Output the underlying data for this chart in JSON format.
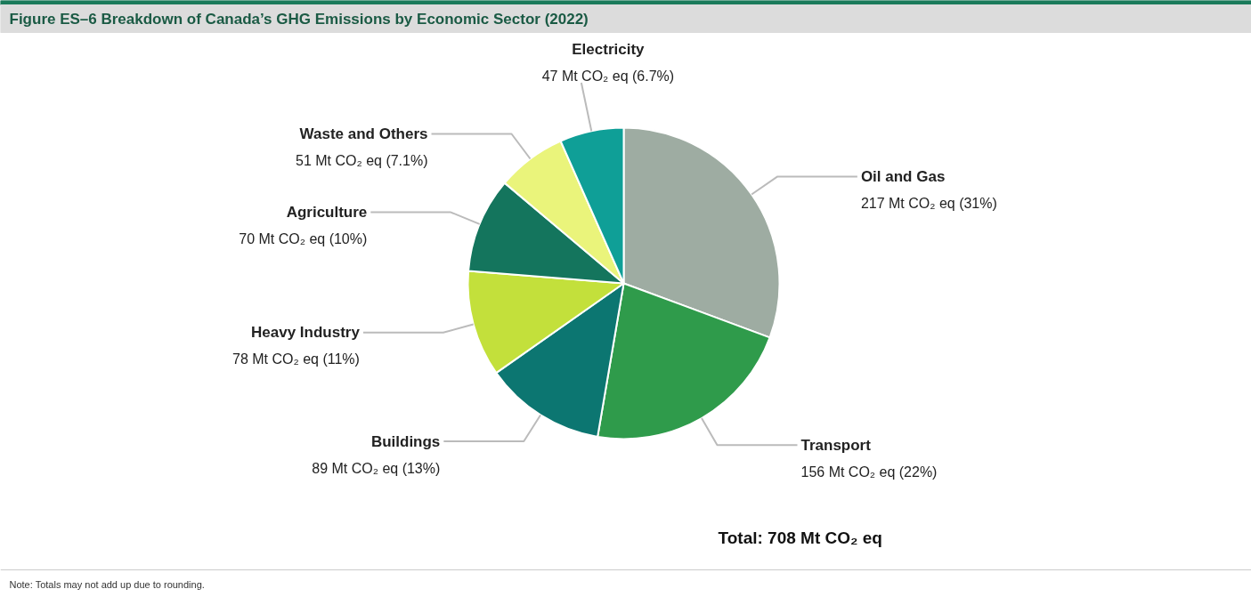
{
  "chart_data": {
    "type": "pie",
    "title": "Figure ES–6 Breakdown of Canada’s GHG Emissions by Economic Sector (2022)",
    "categories": [
      "Oil and Gas",
      "Transport",
      "Buildings",
      "Heavy Industry",
      "Agriculture",
      "Waste and Others",
      "Electricity"
    ],
    "values": [
      217,
      156,
      89,
      78,
      70,
      51,
      47
    ],
    "value_labels": [
      "217 Mt CO₂ eq (31%)",
      "156 Mt CO₂ eq (22%)",
      "89 Mt CO₂ eq (13%)",
      "78 Mt CO₂ eq (11%)",
      "70 Mt CO₂ eq (10%)",
      "51 Mt CO₂ eq (7.1%)",
      "47 Mt CO₂ eq (6.7%)"
    ],
    "colors": [
      "#9eaca2",
      "#2f9b4b",
      "#0c7671",
      "#c3e03b",
      "#14755d",
      "#eaf47b",
      "#0f9f97"
    ],
    "annotations": [
      "Total: 708 Mt CO₂ eq",
      "Note: Totals may not add up due to rounding."
    ]
  }
}
